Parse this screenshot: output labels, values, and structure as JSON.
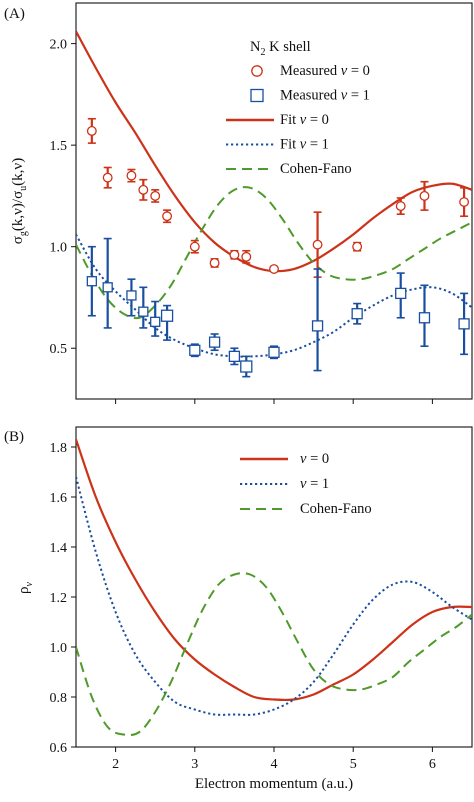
{
  "colors": {
    "v0": "#cc3318",
    "v1": "#1a4fa0",
    "cohen": "#4f9a2a",
    "axis": "#111111"
  },
  "chart_data": [
    {
      "type": "line+scatter",
      "panel_label": "(A)",
      "ylabel_parts": [
        "σ",
        "g",
        "(k,ν)/σ",
        "u",
        "(k,ν)"
      ],
      "xlabel": "",
      "xlim": [
        1.5,
        6.5
      ],
      "ylim": [
        0.25,
        2.2
      ],
      "xticks": [
        2,
        3,
        4,
        5,
        6
      ],
      "xtick_labels": [
        "",
        "",
        "",
        "",
        ""
      ],
      "yticks": [
        0.5,
        1.0,
        1.5,
        2.0
      ],
      "ytick_labels": [
        "0.5",
        "1.0",
        "1.5",
        "2.0"
      ],
      "legend_title_parts": [
        "N",
        "2",
        " K shell"
      ],
      "legend": [
        {
          "key": "meas0",
          "label": "Measured  ",
          "var": "v",
          "suffix": " = 0",
          "marker": "circle",
          "color_key": "v0"
        },
        {
          "key": "meas1",
          "label": "Measured  ",
          "var": "v",
          "suffix": " = 1",
          "marker": "square",
          "color_key": "v1"
        },
        {
          "key": "fit0",
          "label": "Fit  ",
          "var": "v",
          "suffix": " = 0",
          "line": "solid",
          "color_key": "v0"
        },
        {
          "key": "fit1",
          "label": "Fit  ",
          "var": "v",
          "suffix": " = 1",
          "line": "dotted",
          "color_key": "v1"
        },
        {
          "key": "cohen",
          "label": "Cohen-Fano",
          "var": "",
          "suffix": "",
          "line": "dashed",
          "color_key": "cohen"
        }
      ],
      "points": {
        "meas0": {
          "x": [
            1.7,
            1.9,
            2.2,
            2.35,
            2.5,
            2.65,
            3.0,
            3.25,
            3.5,
            3.65,
            4.0,
            4.55,
            5.05,
            5.6,
            5.9,
            6.4
          ],
          "y": [
            1.57,
            1.34,
            1.35,
            1.28,
            1.25,
            1.15,
            1.0,
            0.92,
            0.96,
            0.95,
            0.89,
            1.01,
            1.0,
            1.2,
            1.25,
            1.22
          ],
          "err": [
            0.06,
            0.05,
            0.03,
            0.05,
            0.03,
            0.03,
            0.03,
            0.02,
            0.02,
            0.03,
            0.01,
            0.16,
            0.02,
            0.04,
            0.07,
            0.07
          ]
        },
        "meas1": {
          "x": [
            1.7,
            1.9,
            2.2,
            2.35,
            2.5,
            2.65,
            3.0,
            3.25,
            3.5,
            3.65,
            4.0,
            4.55,
            5.05,
            5.6,
            5.9,
            6.4
          ],
          "y": [
            0.83,
            0.8,
            0.76,
            0.68,
            0.63,
            0.66,
            0.49,
            0.53,
            0.46,
            0.41,
            0.48,
            0.61,
            0.67,
            0.77,
            0.65,
            0.62
          ],
          "err_low": [
            0.17,
            0.2,
            0.1,
            0.08,
            0.07,
            0.12,
            0.03,
            0.04,
            0.04,
            0.05,
            0.03,
            0.22,
            0.05,
            0.12,
            0.14,
            0.15
          ],
          "err_high": [
            0.17,
            0.24,
            0.08,
            0.12,
            0.1,
            0.05,
            0.03,
            0.04,
            0.04,
            0.05,
            0.03,
            0.28,
            0.05,
            0.1,
            0.16,
            0.15
          ],
          "marker_sizes": [
            9,
            9,
            9,
            9,
            9,
            11,
            10,
            10,
            10,
            11,
            10,
            10,
            10,
            10,
            10,
            10
          ]
        }
      },
      "curves": {
        "fit0": {
          "x": [
            1.5,
            1.75,
            2.0,
            2.25,
            2.5,
            2.75,
            3.0,
            3.25,
            3.5,
            3.75,
            4.0,
            4.25,
            4.5,
            4.75,
            5.0,
            5.25,
            5.5,
            5.75,
            6.0,
            6.25,
            6.5
          ],
          "y": [
            2.06,
            1.88,
            1.71,
            1.56,
            1.4,
            1.25,
            1.12,
            1.02,
            0.95,
            0.9,
            0.88,
            0.89,
            0.93,
            0.99,
            1.06,
            1.14,
            1.21,
            1.27,
            1.3,
            1.31,
            1.28
          ]
        },
        "fit1": {
          "x": [
            1.5,
            1.75,
            2.0,
            2.25,
            2.5,
            2.75,
            3.0,
            3.25,
            3.5,
            3.75,
            4.0,
            4.25,
            4.5,
            4.75,
            5.0,
            5.25,
            5.5,
            5.75,
            6.0,
            6.25,
            6.5
          ],
          "y": [
            1.06,
            0.89,
            0.78,
            0.69,
            0.6,
            0.54,
            0.5,
            0.47,
            0.46,
            0.46,
            0.47,
            0.49,
            0.53,
            0.58,
            0.65,
            0.71,
            0.76,
            0.79,
            0.8,
            0.77,
            0.7
          ]
        },
        "cohen": {
          "x": [
            1.5,
            1.7,
            1.9,
            2.1,
            2.3,
            2.5,
            2.7,
            2.9,
            3.1,
            3.3,
            3.5,
            3.7,
            3.9,
            4.1,
            4.3,
            4.5,
            4.7,
            4.9,
            5.1,
            5.3,
            5.5,
            5.7,
            5.9,
            6.1,
            6.3,
            6.5
          ],
          "y": [
            1.01,
            0.86,
            0.74,
            0.67,
            0.65,
            0.71,
            0.81,
            0.95,
            1.09,
            1.21,
            1.28,
            1.29,
            1.24,
            1.14,
            1.02,
            0.92,
            0.86,
            0.84,
            0.84,
            0.86,
            0.89,
            0.94,
            0.99,
            1.04,
            1.08,
            1.12
          ]
        }
      }
    },
    {
      "type": "line",
      "panel_label": "(B)",
      "ylabel_parts": [
        "ρ",
        "ν"
      ],
      "xlabel": "Electron momentum (a.u.)",
      "xlim": [
        1.5,
        6.5
      ],
      "ylim": [
        0.6,
        1.88
      ],
      "xticks": [
        2,
        3,
        4,
        5,
        6
      ],
      "xtick_labels": [
        "2",
        "3",
        "4",
        "5",
        "6"
      ],
      "yticks": [
        0.6,
        0.8,
        1.0,
        1.2,
        1.4,
        1.6,
        1.8
      ],
      "ytick_labels": [
        "0.6",
        "0.8",
        "1.0",
        "1.2",
        "1.4",
        "1.6",
        "1.8"
      ],
      "legend": [
        {
          "key": "v0",
          "label": "",
          "var": "v",
          "suffix": " = 0",
          "line": "solid",
          "color_key": "v0"
        },
        {
          "key": "v1",
          "label": "",
          "var": "v",
          "suffix": " = 1",
          "line": "dotted",
          "color_key": "v1"
        },
        {
          "key": "cohen",
          "label": "Cohen-Fano",
          "var": "",
          "suffix": "",
          "line": "dashed",
          "color_key": "cohen"
        }
      ],
      "curves": {
        "v0": {
          "x": [
            1.5,
            1.75,
            2.0,
            2.25,
            2.5,
            2.75,
            3.0,
            3.25,
            3.5,
            3.75,
            4.0,
            4.25,
            4.5,
            4.75,
            5.0,
            5.25,
            5.5,
            5.75,
            6.0,
            6.25,
            6.5
          ],
          "y": [
            1.83,
            1.6,
            1.42,
            1.27,
            1.14,
            1.03,
            0.95,
            0.89,
            0.84,
            0.8,
            0.79,
            0.79,
            0.81,
            0.85,
            0.89,
            0.95,
            1.02,
            1.09,
            1.14,
            1.16,
            1.16
          ]
        },
        "v1": {
          "x": [
            1.5,
            1.75,
            2.0,
            2.25,
            2.5,
            2.75,
            3.0,
            3.25,
            3.5,
            3.75,
            4.0,
            4.25,
            4.5,
            4.75,
            5.0,
            5.25,
            5.5,
            5.75,
            6.0,
            6.25,
            6.5
          ],
          "y": [
            1.68,
            1.38,
            1.14,
            0.97,
            0.86,
            0.78,
            0.75,
            0.73,
            0.73,
            0.73,
            0.75,
            0.79,
            0.86,
            0.97,
            1.09,
            1.19,
            1.25,
            1.26,
            1.22,
            1.16,
            1.11
          ]
        },
        "cohen": {
          "x": [
            1.5,
            1.7,
            1.9,
            2.1,
            2.3,
            2.5,
            2.7,
            2.9,
            3.1,
            3.3,
            3.5,
            3.7,
            3.9,
            4.1,
            4.3,
            4.5,
            4.7,
            4.9,
            5.1,
            5.3,
            5.5,
            5.7,
            5.9,
            6.1,
            6.3,
            6.5
          ],
          "y": [
            1.0,
            0.8,
            0.68,
            0.65,
            0.66,
            0.74,
            0.86,
            1.01,
            1.15,
            1.25,
            1.29,
            1.29,
            1.24,
            1.14,
            1.02,
            0.91,
            0.85,
            0.83,
            0.83,
            0.85,
            0.88,
            0.94,
            0.99,
            1.04,
            1.08,
            1.13
          ]
        }
      }
    }
  ]
}
